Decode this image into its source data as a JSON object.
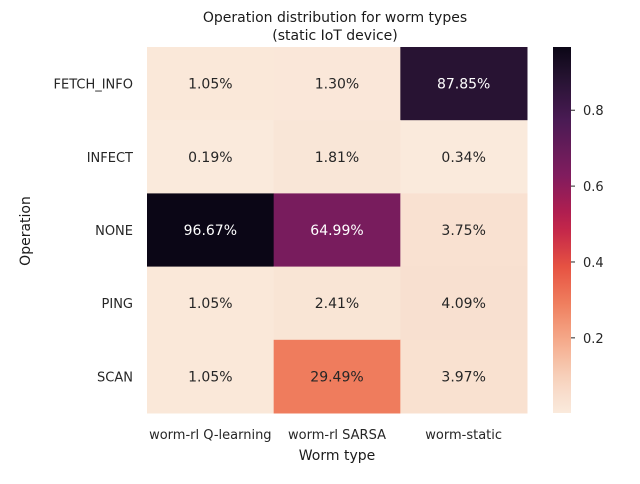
{
  "chart_data": {
    "type": "heatmap",
    "title": "Operation distribution for worm types",
    "subtitle": "(static IoT device)",
    "xlabel": "Worm type",
    "ylabel": "Operation",
    "x_categories": [
      "worm-rl Q-learning",
      "worm-rl SARSA",
      "worm-static"
    ],
    "y_categories": [
      "FETCH_INFO",
      "INFECT",
      "NONE",
      "PING",
      "SCAN"
    ],
    "values": [
      [
        0.0105,
        0.013,
        0.8785
      ],
      [
        0.0019,
        0.0181,
        0.0034
      ],
      [
        0.9667,
        0.6499,
        0.0375
      ],
      [
        0.0105,
        0.0241,
        0.0409
      ],
      [
        0.0105,
        0.2949,
        0.0397
      ]
    ],
    "cell_labels": [
      [
        "1.05%",
        "1.30%",
        "87.85%"
      ],
      [
        "0.19%",
        "1.81%",
        "0.34%"
      ],
      [
        "96.67%",
        "64.99%",
        "3.75%"
      ],
      [
        "1.05%",
        "2.41%",
        "4.09%"
      ],
      [
        "1.05%",
        "29.49%",
        "3.97%"
      ]
    ],
    "colorbar": {
      "colormap": "rocket_r",
      "range": [
        0.0019,
        0.9667
      ],
      "ticks": [
        0.2,
        0.4,
        0.6,
        0.8
      ],
      "tick_labels": [
        "0.2",
        "0.4",
        "0.6",
        "0.8"
      ]
    },
    "grid": false,
    "legend": "colorbar-right"
  }
}
